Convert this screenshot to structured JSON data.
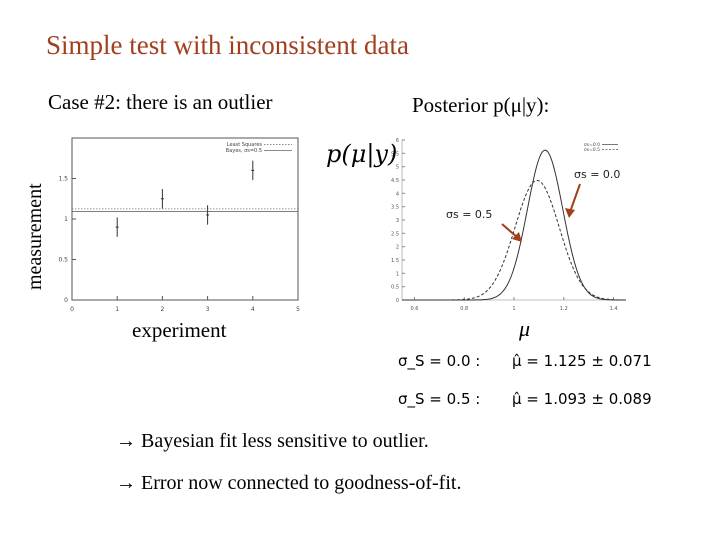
{
  "slide": {
    "title": "Simple test with inconsistent data",
    "left_caption": "Case #2: there is an outlier",
    "right_caption": "Posterior p(μ|y):",
    "results": [
      {
        "label": "σ_S = 0.0 :",
        "value": "μ̂ = 1.125 ± 0.071"
      },
      {
        "label": "σ_S = 0.5 :",
        "value": "μ̂ = 1.093 ± 0.089"
      }
    ],
    "bullets": [
      "→ Bayesian fit less sensitive to outlier.",
      "→ Error now connected to goodness-of-fit."
    ]
  },
  "chart_data": [
    {
      "type": "scatter",
      "xlabel": "experiment",
      "ylabel": "measurement",
      "xlim": [
        0,
        5
      ],
      "ylim": [
        0,
        2
      ],
      "xticks": [
        "0",
        "1",
        "2",
        "3",
        "4",
        "5"
      ],
      "yticks": [
        "0",
        "0.5",
        "1",
        "1.5"
      ],
      "legend": [
        "Least Squares",
        "Bayes, σs=0.5"
      ],
      "legend_position": "top-right",
      "points": [
        {
          "x": 1,
          "y": 0.9,
          "err": 0.12
        },
        {
          "x": 2,
          "y": 1.25,
          "err": 0.12
        },
        {
          "x": 3,
          "y": 1.05,
          "err": 0.12
        },
        {
          "x": 4,
          "y": 1.6,
          "err": 0.12
        }
      ],
      "fit_lines": [
        {
          "name": "Least Squares",
          "y": 1.125
        },
        {
          "name": "Bayes, σs=0.5",
          "y": 1.093
        }
      ]
    },
    {
      "type": "line",
      "ylabel": "p(μ|y)",
      "xlabel": "μ",
      "xlim": [
        0.55,
        1.45
      ],
      "ylim": [
        0,
        6
      ],
      "xticks": [
        "0.6",
        "0.8",
        "1",
        "1.2",
        "1.4"
      ],
      "yticks": [
        "0",
        "0.5",
        "1",
        "1.5",
        "2",
        "2.5",
        "3",
        "3.5",
        "4",
        "4.5",
        "5",
        "5.5",
        "6"
      ],
      "legend": [
        "σs=0.0",
        "σs=0.5"
      ],
      "legend_position": "top-right",
      "annotations": [
        "σs = 0.0",
        "σs = 0.5"
      ],
      "series": [
        {
          "name": "σs=0.0",
          "mu": 1.125,
          "sigma": 0.071,
          "style": "solid"
        },
        {
          "name": "σs=0.5",
          "mu": 1.093,
          "sigma": 0.089,
          "style": "dashed"
        }
      ]
    }
  ]
}
